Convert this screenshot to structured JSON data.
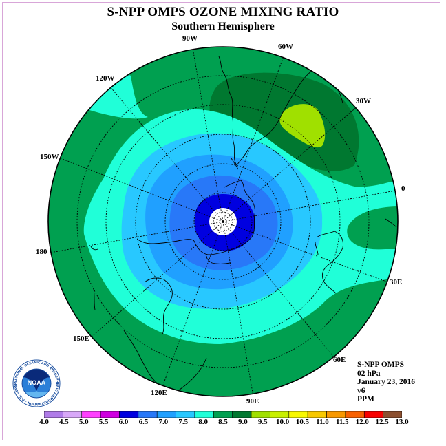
{
  "title": "S-NPP OMPS OZONE MIXING RATIO",
  "subtitle": "Southern Hemisphere",
  "longitude_labels": {
    "w90": "90W",
    "w60": "60W",
    "w30": "30W",
    "w120": "120W",
    "w150": "150W",
    "zero": "0",
    "deg180": "180",
    "e30": "30E",
    "e60": "60E",
    "e90": "90E",
    "e120": "120E",
    "e150": "150E"
  },
  "info": {
    "instrument": "S-NPP OMPS",
    "level": "02 hPa",
    "date": "January 23, 2016",
    "version": "v6",
    "units": "PPM"
  },
  "logo": {
    "text": "NOAA",
    "ring_text": "NATIONAL OCEANIC AND ATMOSPHERIC ADMINISTRATION · U.S. DEPARTMENT OF COMMERCE"
  },
  "colorbar": {
    "ticks": [
      "4.0",
      "4.5",
      "5.0",
      "5.5",
      "6.0",
      "6.5",
      "7.0",
      "7.5",
      "8.0",
      "8.5",
      "9.0",
      "9.5",
      "10.0",
      "10.5",
      "11.0",
      "11.5",
      "12.0",
      "12.5",
      "13.0"
    ],
    "colors": [
      "#b07ce8",
      "#d8a8f8",
      "#ff40ff",
      "#d000e0",
      "#0000e0",
      "#2878f8",
      "#20a0ff",
      "#28c8ff",
      "#20ffd8",
      "#00a050",
      "#007830",
      "#a0e000",
      "#c8f000",
      "#f8f800",
      "#f8c800",
      "#f89800",
      "#f86000",
      "#f80000",
      "#8c5030"
    ]
  },
  "map_colors": {
    "dark_green": "#007830",
    "green": "#00a050",
    "cyan": "#20ffd8",
    "light_blue": "#28c8ff",
    "sky_blue": "#20a0ff",
    "blue": "#2878f8",
    "dark_blue": "#0000e0",
    "lime": "#a0e000"
  }
}
